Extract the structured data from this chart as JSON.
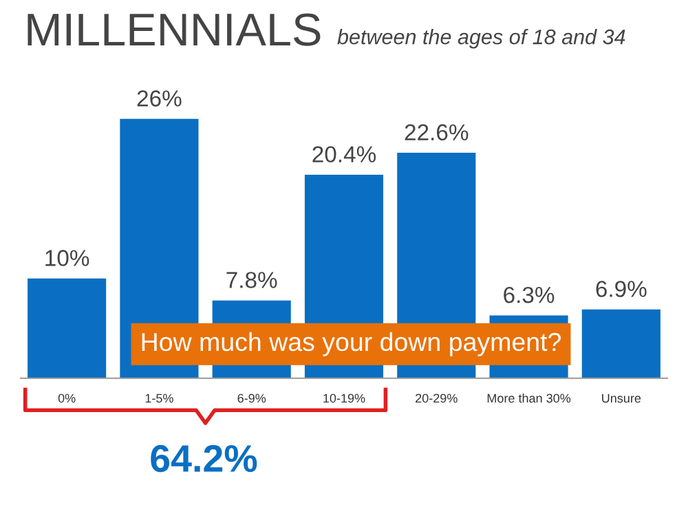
{
  "chart_data": {
    "type": "bar",
    "title": "MILLENNIALS",
    "subtitle": "between the ages of 18 and 34",
    "categories": [
      "0%",
      "1-5%",
      "6-9%",
      "10-19%",
      "20-29%",
      "More than 30%",
      "Unsure"
    ],
    "values": [
      10,
      26,
      7.8,
      20.4,
      22.6,
      6.3,
      6.9
    ],
    "value_labels": [
      "10%",
      "26%",
      "7.8%",
      "20.4%",
      "22.6%",
      "6.3%",
      "6.9%"
    ],
    "color": "#0a6fc2",
    "grid": false,
    "legend": false,
    "annotations": [
      "How much was your down payment?",
      "64.2%"
    ]
  }
}
